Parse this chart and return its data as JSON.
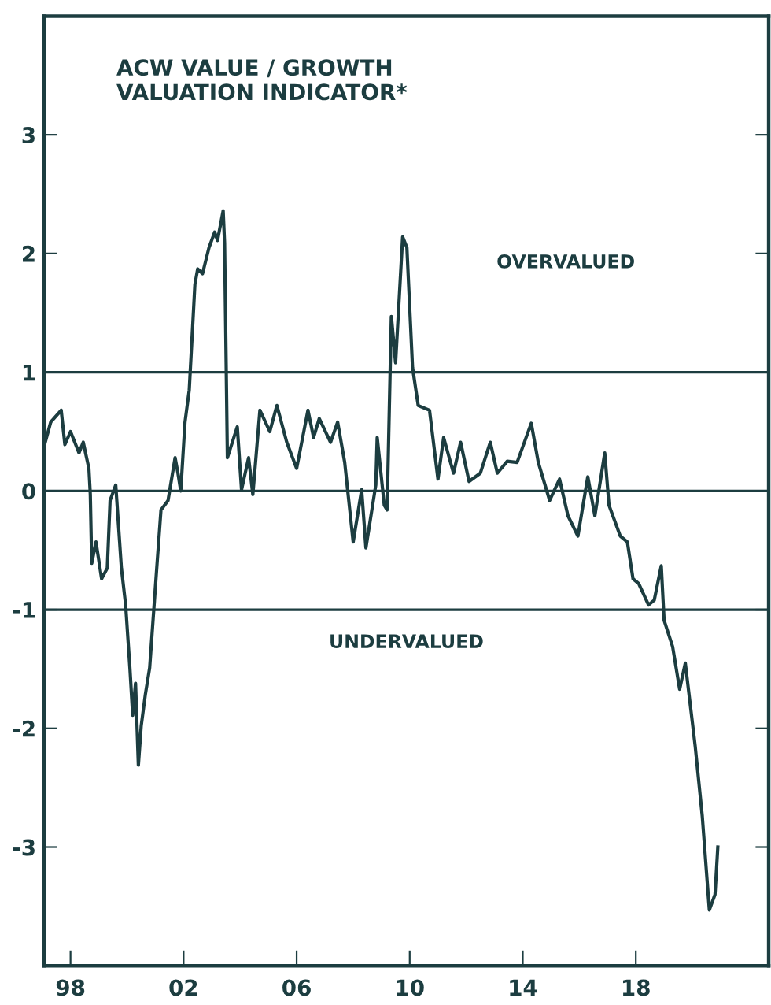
{
  "chart_data": {
    "type": "line",
    "title": "ACW VALUE / GROWTH\nVALUATION INDICATOR*",
    "annotations": [
      "OVERVALUED",
      "UNDERVALUED"
    ],
    "series": [
      {
        "color": "#1c3d40",
        "x": [
          1997.06,
          1997.3,
          1997.67,
          1997.8,
          1998.0,
          1998.3,
          1998.45,
          1998.65,
          1998.7,
          1998.75,
          1998.9,
          1999.1,
          1999.3,
          1999.4,
          1999.6,
          1999.8,
          1999.95,
          2000.1,
          2000.2,
          2000.3,
          2000.4,
          2000.5,
          2000.65,
          2000.8,
          2001.05,
          2001.2,
          2001.45,
          2001.7,
          2001.8,
          2001.9,
          2002.05,
          2002.2,
          2002.4,
          2002.5,
          2002.67,
          2002.9,
          2003.1,
          2003.2,
          2003.4,
          2003.45,
          2003.55,
          2003.9,
          2004.05,
          2004.3,
          2004.45,
          2004.7,
          2005.05,
          2005.3,
          2005.65,
          2006.0,
          2006.4,
          2006.6,
          2006.8,
          2007.2,
          2007.45,
          2007.7,
          2008.0,
          2008.3,
          2008.45,
          2008.8,
          2008.85,
          2009.1,
          2009.2,
          2009.35,
          2009.5,
          2009.75,
          2009.9,
          2010.1,
          2010.3,
          2010.7,
          2011.0,
          2011.2,
          2011.55,
          2011.8,
          2012.1,
          2012.5,
          2012.85,
          2013.1,
          2013.45,
          2013.8,
          2014.3,
          2014.55,
          2014.95,
          2015.3,
          2015.6,
          2015.95,
          2016.3,
          2016.55,
          2016.9,
          2017.05,
          2017.45,
          2017.7,
          2017.9,
          2018.1,
          2018.45,
          2018.65,
          2018.9,
          2019.0,
          2019.3,
          2019.55,
          2019.75,
          2019.95,
          2020.1,
          2020.35,
          2020.6,
          2020.8,
          2020.9
        ],
        "values": [
          0.37,
          0.58,
          0.68,
          0.39,
          0.5,
          0.32,
          0.41,
          0.19,
          -0.03,
          -0.61,
          -0.43,
          -0.74,
          -0.65,
          -0.08,
          0.05,
          -0.65,
          -0.96,
          -1.49,
          -1.89,
          -1.62,
          -2.31,
          -1.98,
          -1.71,
          -1.49,
          -0.65,
          -0.16,
          -0.08,
          0.28,
          0.15,
          0.0,
          0.58,
          0.85,
          1.74,
          1.87,
          1.83,
          2.05,
          2.18,
          2.11,
          2.36,
          2.09,
          0.28,
          0.54,
          0.01,
          0.28,
          -0.03,
          0.68,
          0.5,
          0.72,
          0.41,
          0.19,
          0.68,
          0.45,
          0.61,
          0.41,
          0.58,
          0.24,
          -0.43,
          0.01,
          -0.48,
          0.05,
          0.45,
          -0.12,
          -0.16,
          1.47,
          1.08,
          2.14,
          2.05,
          1.04,
          0.72,
          0.68,
          0.1,
          0.45,
          0.15,
          0.41,
          0.08,
          0.15,
          0.41,
          0.15,
          0.25,
          0.24,
          0.57,
          0.24,
          -0.08,
          0.1,
          -0.21,
          -0.38,
          0.12,
          -0.21,
          0.32,
          -0.12,
          -0.38,
          -0.43,
          -0.74,
          -0.78,
          -0.96,
          -0.92,
          -0.63,
          -1.09,
          -1.31,
          -1.67,
          -1.45,
          -1.85,
          -2.15,
          -2.74,
          -3.53,
          -3.4,
          -3.0
        ]
      }
    ],
    "xlim": [
      1997.06,
      2022.7
    ],
    "ylim": [
      -4,
      4
    ],
    "xticks": [
      {
        "value": 1998,
        "label": "98"
      },
      {
        "value": 2002,
        "label": "02"
      },
      {
        "value": 2006,
        "label": "06"
      },
      {
        "value": 2010,
        "label": "10"
      },
      {
        "value": 2014,
        "label": "14"
      },
      {
        "value": 2018,
        "label": "18"
      }
    ],
    "yticks": [
      -3,
      -2,
      -1,
      0,
      1,
      2,
      3
    ],
    "ref_lines": [
      {
        "axis": "y",
        "value": 1,
        "color": "#1c3d40"
      },
      {
        "axis": "y",
        "value": 0,
        "color": "#1c3d40"
      },
      {
        "axis": "y",
        "value": -1,
        "color": "#1c3d40"
      }
    ],
    "grid": false,
    "legend": false,
    "marker": "none",
    "line_style": "solid"
  }
}
